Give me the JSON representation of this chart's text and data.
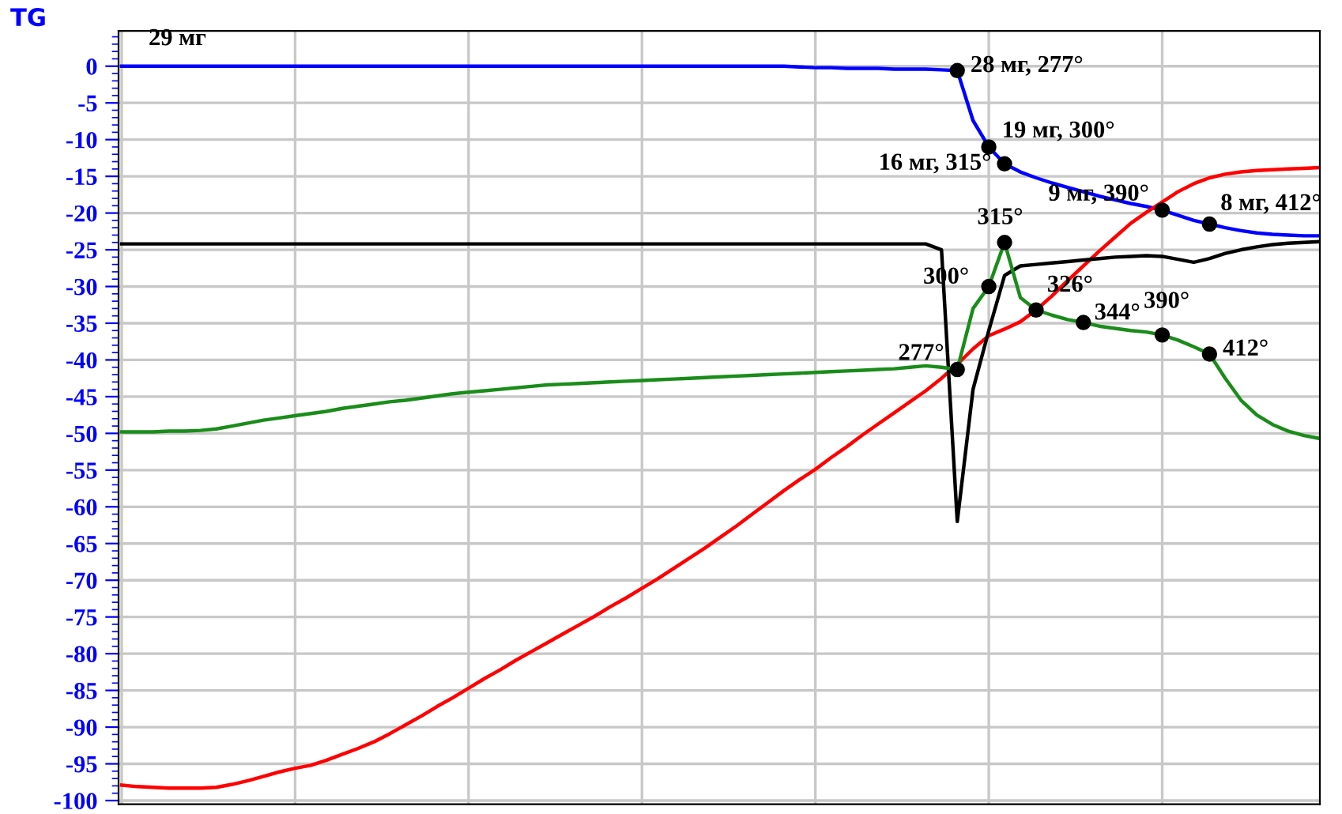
{
  "chart_data": {
    "type": "line",
    "ylabel": "TG",
    "categories": [
      null,
      null,
      null,
      null,
      null,
      null,
      null,
      null,
      null,
      null,
      null,
      null,
      null,
      null,
      null,
      null,
      null,
      null,
      null,
      null,
      null,
      null,
      null,
      null,
      null,
      null,
      null,
      null,
      null,
      null,
      null,
      null,
      null,
      null,
      null,
      null,
      null,
      null,
      null,
      null,
      null,
      null,
      null,
      null,
      null,
      null,
      null,
      null,
      null,
      null,
      null,
      null,
      null,
      null,
      null,
      null,
      null,
      null,
      null,
      null,
      null,
      null,
      null,
      null,
      null,
      null,
      null,
      null,
      null,
      null,
      null,
      null,
      null,
      null,
      null,
      null,
      null
    ],
    "ylim": [
      -100.5,
      4.8
    ],
    "yticks": [
      0,
      -5,
      -10,
      -15,
      -20,
      -25,
      -30,
      -35,
      -40,
      -45,
      -50,
      -55,
      -60,
      -65,
      -70,
      -75,
      -80,
      -85,
      -90,
      -95,
      -100
    ],
    "grid": true,
    "legend": false,
    "line_style": "solid",
    "annotations": [
      "29 мг",
      "28 мг, 277°",
      "19 мг, 300°",
      "16 мг, 315°",
      "9 мг, 390°",
      "8 мг, 412°",
      "277°",
      "300°",
      "315°",
      "326°",
      "344°",
      "390°",
      "412°"
    ],
    "series": [
      {
        "type": "line",
        "color": "#0000ff",
        "values": [
          0,
          0,
          0,
          0,
          0,
          0,
          0,
          0,
          0,
          0,
          0,
          0,
          0,
          0,
          0,
          0,
          0,
          0,
          0,
          0,
          0,
          0,
          0,
          0,
          0,
          0,
          0,
          0,
          0,
          0,
          0,
          0,
          0,
          0,
          0,
          0,
          0,
          0,
          0,
          0,
          0,
          0,
          0,
          -0.1,
          -0.2,
          -0.2,
          -0.3,
          -0.3,
          -0.3,
          -0.4,
          -0.4,
          -0.4,
          -0.5,
          -0.6,
          -7.4,
          -11,
          -13.3,
          -14.4,
          -15.2,
          -15.9,
          -16.5,
          -17.1,
          -17.7,
          -18.2,
          -18.7,
          -19.1,
          -19.6,
          -20.3,
          -21,
          -21.5,
          -22,
          -22.4,
          -22.7,
          -22.9,
          -23,
          -23.1,
          -23.1
        ]
      },
      {
        "type": "line",
        "color": "#ff0000",
        "values": [
          -97.9,
          -98.1,
          -98.2,
          -98.3,
          -98.3,
          -98.3,
          -98.2,
          -97.8,
          -97.3,
          -96.7,
          -96.1,
          -95.6,
          -95.2,
          -94.5,
          -93.7,
          -92.9,
          -92.0,
          -90.9,
          -89.7,
          -88.5,
          -87.2,
          -86.0,
          -84.7,
          -83.4,
          -82.2,
          -80.9,
          -79.7,
          -78.5,
          -77.3,
          -76.1,
          -74.9,
          -73.6,
          -72.4,
          -71.1,
          -69.8,
          -68.4,
          -67.0,
          -65.6,
          -64.1,
          -62.6,
          -61.0,
          -59.4,
          -57.8,
          -56.3,
          -54.9,
          -53.3,
          -51.8,
          -50.2,
          -48.7,
          -47.2,
          -45.7,
          -44.2,
          -42.5,
          -40.6,
          -38.5,
          -36.7,
          -35.8,
          -34.8,
          -33.2,
          -31.3,
          -29.2,
          -27.2,
          -25.2,
          -23.3,
          -21.4,
          -19.9,
          -18.5,
          -17.1,
          -16,
          -15.2,
          -14.7,
          -14.4,
          -14.2,
          -14.1,
          -14,
          -13.9,
          -13.8
        ]
      },
      {
        "type": "line",
        "color": "#000000",
        "values": [
          -24.2,
          -24.2,
          -24.2,
          -24.2,
          -24.2,
          -24.2,
          -24.2,
          -24.2,
          -24.2,
          -24.2,
          -24.2,
          -24.2,
          -24.2,
          -24.2,
          -24.2,
          -24.2,
          -24.2,
          -24.2,
          -24.2,
          -24.2,
          -24.2,
          -24.2,
          -24.2,
          -24.2,
          -24.2,
          -24.2,
          -24.2,
          -24.2,
          -24.2,
          -24.2,
          -24.2,
          -24.2,
          -24.2,
          -24.2,
          -24.2,
          -24.2,
          -24.2,
          -24.2,
          -24.2,
          -24.2,
          -24.2,
          -24.2,
          -24.2,
          -24.2,
          -24.2,
          -24.2,
          -24.2,
          -24.2,
          -24.2,
          -24.2,
          -24.2,
          -24.2,
          -25,
          -62,
          -44,
          -36,
          -28.5,
          -27.2,
          -27,
          -26.8,
          -26.6,
          -26.4,
          -26.2,
          -26.0,
          -25.9,
          -25.8,
          -25.9,
          -26.3,
          -26.7,
          -26.2,
          -25.5,
          -25,
          -24.6,
          -24.3,
          -24.1,
          -24,
          -23.9
        ]
      },
      {
        "type": "line",
        "color": "#1a8c1a",
        "values": [
          -49.8,
          -49.8,
          -49.8,
          -49.7,
          -49.7,
          -49.6,
          -49.4,
          -49.0,
          -48.6,
          -48.2,
          -47.9,
          -47.6,
          -47.3,
          -47.0,
          -46.6,
          -46.3,
          -46.0,
          -45.7,
          -45.5,
          -45.2,
          -44.9,
          -44.6,
          -44.4,
          -44.2,
          -44.0,
          -43.8,
          -43.6,
          -43.4,
          -43.3,
          -43.2,
          -43.1,
          -43.0,
          -42.9,
          -42.8,
          -42.7,
          -42.6,
          -42.5,
          -42.4,
          -42.3,
          -42.2,
          -42.1,
          -42.0,
          -41.9,
          -41.8,
          -41.7,
          -41.6,
          -41.5,
          -41.4,
          -41.3,
          -41.2,
          -41.0,
          -40.8,
          -41.0,
          -41.3,
          -33,
          -30,
          -24,
          -31.5,
          -33.2,
          -33.9,
          -34.5,
          -34.9,
          -35.4,
          -35.7,
          -36.0,
          -36.2,
          -36.6,
          -37.3,
          -38.2,
          -39.2,
          -42.5,
          -45.5,
          -47.5,
          -48.8,
          -49.7,
          -50.3,
          -50.7
        ]
      },
      {
        "type": "scatter",
        "color": "#000000",
        "marker": "circle",
        "values": [
          null,
          null,
          null,
          null,
          null,
          null,
          null,
          null,
          null,
          null,
          null,
          null,
          null,
          null,
          null,
          null,
          null,
          null,
          null,
          null,
          null,
          null,
          null,
          null,
          null,
          null,
          null,
          null,
          null,
          null,
          null,
          null,
          null,
          null,
          null,
          null,
          null,
          null,
          null,
          null,
          null,
          null,
          null,
          null,
          null,
          null,
          null,
          null,
          null,
          null,
          null,
          null,
          null,
          -0.6,
          null,
          -11,
          -13.3,
          null,
          null,
          null,
          null,
          null,
          null,
          null,
          null,
          null,
          -19.6,
          null,
          null,
          -21.5,
          null,
          null,
          null,
          null,
          null,
          null,
          null
        ]
      },
      {
        "type": "scatter",
        "color": "#000000",
        "marker": "circle",
        "values": [
          null,
          null,
          null,
          null,
          null,
          null,
          null,
          null,
          null,
          null,
          null,
          null,
          null,
          null,
          null,
          null,
          null,
          null,
          null,
          null,
          null,
          null,
          null,
          null,
          null,
          null,
          null,
          null,
          null,
          null,
          null,
          null,
          null,
          null,
          null,
          null,
          null,
          null,
          null,
          null,
          null,
          null,
          null,
          null,
          null,
          null,
          null,
          null,
          null,
          null,
          null,
          null,
          null,
          -41.3,
          null,
          -30,
          -24,
          null,
          -33.2,
          null,
          null,
          -34.9,
          null,
          null,
          null,
          null,
          -36.6,
          null,
          null,
          -39.2,
          null,
          null,
          null,
          null,
          null,
          null,
          null
        ]
      }
    ]
  }
}
